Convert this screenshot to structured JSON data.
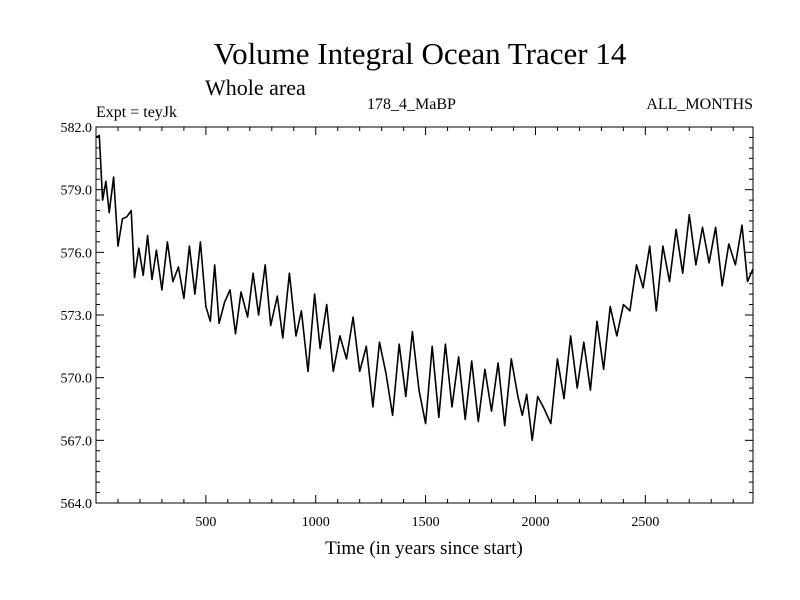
{
  "chart_data": {
    "type": "line",
    "title": "Volume Integral Ocean Tracer 14",
    "subtitle": "Whole area",
    "expt_label": "Expt = teyJk",
    "period_label": "178_4_MaBP",
    "months_label": "ALL_MONTHS",
    "xlabel": "Time (in years since start)",
    "ylabel": "",
    "xlim": [
      0,
      2990
    ],
    "ylim": [
      564.0,
      582.0
    ],
    "x_ticks": [
      500,
      1000,
      1500,
      2000,
      2500
    ],
    "x_tick_labels": [
      "500",
      "1000",
      "1500",
      "2000",
      "2500"
    ],
    "y_ticks": [
      564.0,
      567.0,
      570.0,
      573.0,
      576.0,
      579.0,
      582.0
    ],
    "y_tick_labels": [
      "564.0",
      "567.0",
      "570.0",
      "573.0",
      "576.0",
      "579.0",
      "582.0"
    ],
    "grid": false,
    "series": [
      {
        "name": "Volume Integral Ocean Tracer 14",
        "x": [
          0,
          15,
          30,
          45,
          60,
          80,
          100,
          120,
          140,
          160,
          175,
          195,
          215,
          235,
          255,
          275,
          300,
          325,
          350,
          375,
          400,
          425,
          450,
          475,
          500,
          520,
          540,
          560,
          585,
          610,
          635,
          660,
          690,
          715,
          740,
          770,
          795,
          825,
          850,
          880,
          910,
          935,
          965,
          995,
          1020,
          1050,
          1080,
          1110,
          1140,
          1170,
          1200,
          1230,
          1260,
          1290,
          1320,
          1350,
          1380,
          1410,
          1440,
          1470,
          1500,
          1530,
          1560,
          1590,
          1620,
          1650,
          1680,
          1710,
          1740,
          1770,
          1800,
          1830,
          1860,
          1890,
          1920,
          1940,
          1960,
          1985,
          2010,
          2040,
          2070,
          2100,
          2130,
          2160,
          2190,
          2220,
          2250,
          2280,
          2310,
          2340,
          2370,
          2400,
          2430,
          2460,
          2490,
          2520,
          2550,
          2580,
          2610,
          2640,
          2670,
          2700,
          2730,
          2760,
          2790,
          2820,
          2850,
          2880,
          2910,
          2940,
          2965,
          2990
        ],
        "values": [
          581.5,
          581.6,
          578.5,
          579.4,
          577.9,
          579.6,
          576.3,
          577.6,
          577.7,
          578.0,
          574.8,
          576.2,
          574.9,
          576.8,
          574.7,
          576.1,
          574.2,
          576.5,
          574.6,
          575.3,
          573.8,
          576.3,
          574.0,
          576.5,
          573.4,
          572.7,
          575.4,
          572.6,
          573.6,
          574.2,
          572.1,
          574.1,
          572.9,
          575.0,
          573.0,
          575.4,
          572.5,
          573.9,
          571.9,
          575.0,
          572.0,
          573.2,
          570.3,
          574.0,
          571.4,
          573.5,
          570.3,
          572.0,
          570.9,
          572.9,
          570.3,
          571.5,
          568.6,
          571.7,
          570.2,
          568.2,
          571.6,
          569.1,
          572.2,
          569.4,
          567.8,
          571.5,
          568.1,
          571.6,
          568.6,
          571.0,
          568.0,
          570.8,
          567.9,
          570.4,
          568.4,
          570.7,
          567.7,
          570.9,
          569.1,
          568.2,
          569.2,
          567.0,
          569.1,
          568.5,
          567.8,
          570.9,
          569.0,
          572.0,
          569.5,
          571.7,
          569.4,
          572.7,
          570.4,
          573.4,
          572.0,
          573.5,
          573.2,
          575.4,
          574.3,
          576.3,
          573.2,
          576.3,
          574.6,
          577.1,
          575.0,
          577.8,
          575.4,
          577.2,
          575.5,
          577.2,
          574.4,
          576.4,
          575.4,
          577.3,
          574.6,
          575.2
        ]
      }
    ]
  }
}
